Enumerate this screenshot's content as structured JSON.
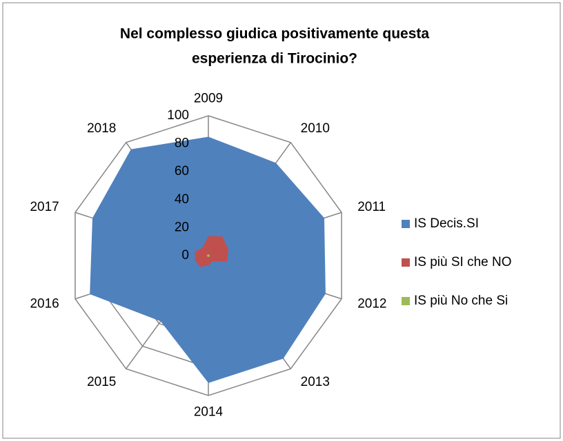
{
  "chart_data": {
    "type": "radar",
    "title": [
      "Nel complesso giudica positivamente questa",
      "esperienza di Tirocinio?"
    ],
    "categories": [
      "2009",
      "2010",
      "2011",
      "2012",
      "2013",
      "2014",
      "2015",
      "2016",
      "2017",
      "2018"
    ],
    "series": [
      {
        "name": "IS Decis.SI",
        "color": "#4f81bd",
        "values": [
          85,
          82,
          87,
          88,
          91,
          91,
          58,
          89,
          87,
          94
        ]
      },
      {
        "name": "IS più SI che NO",
        "color": "#c0504d",
        "values": [
          14,
          17,
          15,
          14,
          5,
          7,
          10,
          10,
          10,
          7
        ]
      },
      {
        "name": "IS più No che Si",
        "color": "#9bbb59",
        "values": [
          1,
          1,
          1,
          1,
          1,
          1,
          1,
          1,
          1,
          1
        ]
      }
    ],
    "rlim": [
      0,
      100
    ],
    "rticks": [
      0,
      20,
      40,
      60,
      80,
      100
    ],
    "legend": "right"
  }
}
